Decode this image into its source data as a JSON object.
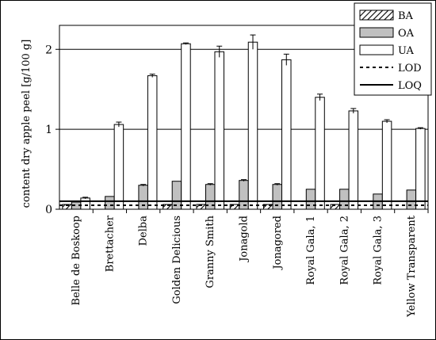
{
  "chart_data": {
    "type": "bar",
    "ylabel": "content dry apple peel [g/100 g]",
    "ylim": [
      0,
      2.3
    ],
    "yticks": [
      "0",
      "1",
      "2"
    ],
    "grid": "horizontal",
    "legend_position": "top-right",
    "categories": [
      "Belle de Boskoop",
      "Brettacher",
      "Delba",
      "Golden Delicious",
      "Granny Smith",
      "Jonagold",
      "Jonagored",
      "Royal Gala, 1",
      "Royal Gala, 2",
      "Royal Gala, 3",
      "Yellow Transparent"
    ],
    "series": [
      {
        "name": "BA",
        "pattern": "hatch",
        "fill": "#ffffff",
        "values": [
          0.06,
          null,
          null,
          0.06,
          0.06,
          0.06,
          0.06,
          null,
          0.06,
          null,
          null
        ],
        "errors": [
          0,
          0,
          0,
          0,
          0,
          0,
          0,
          0,
          0,
          0,
          0
        ]
      },
      {
        "name": "OA",
        "fill": "#c0c0c0",
        "values": [
          0.09,
          0.16,
          0.3,
          0.35,
          0.31,
          0.36,
          0.31,
          0.25,
          0.25,
          0.19,
          0.24
        ],
        "errors": [
          0,
          0,
          0.01,
          0,
          0.01,
          0.01,
          0.01,
          0,
          0,
          0,
          0
        ]
      },
      {
        "name": "UA",
        "fill": "#ffffff",
        "values": [
          0.14,
          1.06,
          1.67,
          2.07,
          1.97,
          2.09,
          1.87,
          1.4,
          1.23,
          1.1,
          1.01
        ],
        "errors": [
          0.01,
          0.03,
          0.02,
          0.01,
          0.07,
          0.09,
          0.07,
          0.04,
          0.03,
          0.02,
          0.01
        ]
      }
    ],
    "reference_lines": [
      {
        "name": "LOD",
        "value": 0.05,
        "style": "dotted"
      },
      {
        "name": "LOQ",
        "value": 0.1,
        "style": "solid"
      }
    ]
  }
}
